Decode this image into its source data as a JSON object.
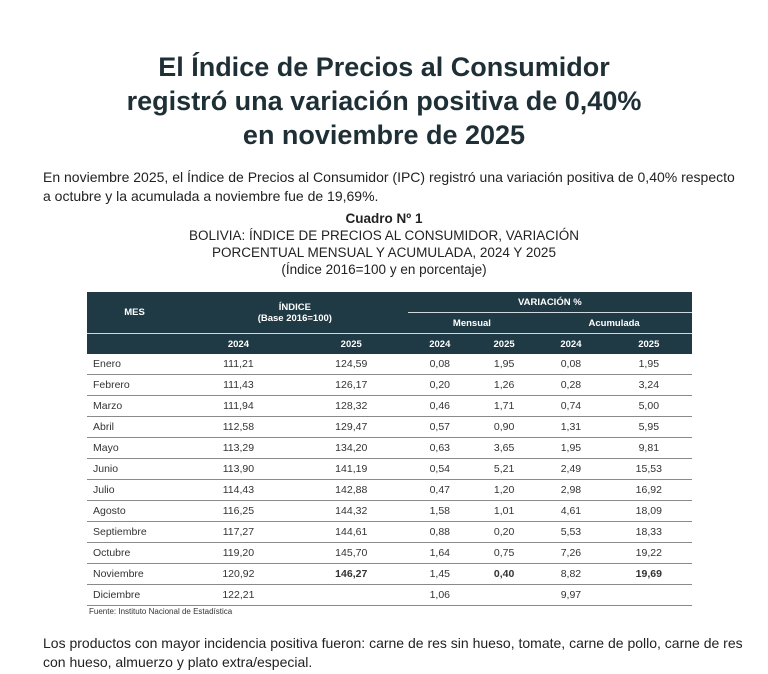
{
  "title": [
    "El Índice de Precios al Consumidor",
    "registró una variación positiva de 0,40%",
    "en noviembre de 2025"
  ],
  "intro": "En noviembre 2025, el Índice de Precios al Consumidor (IPC) registró una variación positiva de 0,40% respecto a octubre y la acumulada a noviembre fue de 19,69%.",
  "caption": {
    "number": "Cuadro Nº 1",
    "line1": "BOLIVIA: ÍNDICE DE PRECIOS AL CONSUMIDOR, VARIACIÓN",
    "line2": "PORCENTUAL MENSUAL Y ACUMULADA, 2024 Y 2025",
    "line3": "(Índice 2016=100 y en porcentaje)"
  },
  "table": {
    "headers": {
      "mes": "MES",
      "indice": "ÍNDICE",
      "base": "(Base 2016=100)",
      "variacion": "VARIACIÓN %",
      "mensual": "Mensual",
      "acumulada": "Acumulada",
      "years": [
        "2024",
        "2025",
        "2024",
        "2025",
        "2024",
        "2025"
      ]
    },
    "rows": [
      [
        "Enero",
        "111,21",
        "124,59",
        "0,08",
        "1,95",
        "0,08",
        "1,95"
      ],
      [
        "Febrero",
        "111,43",
        "126,17",
        "0,20",
        "1,26",
        "0,28",
        "3,24"
      ],
      [
        "Marzo",
        "111,94",
        "128,32",
        "0,46",
        "1,71",
        "0,74",
        "5,00"
      ],
      [
        "Abril",
        "112,58",
        "129,47",
        "0,57",
        "0,90",
        "1,31",
        "5,95"
      ],
      [
        "Mayo",
        "113,29",
        "134,20",
        "0,63",
        "3,65",
        "1,95",
        "9,81"
      ],
      [
        "Junio",
        "113,90",
        "141,19",
        "0,54",
        "5,21",
        "2,49",
        "15,53"
      ],
      [
        "Julio",
        "114,43",
        "142,88",
        "0,47",
        "1,20",
        "2,98",
        "16,92"
      ],
      [
        "Agosto",
        "116,25",
        "144,32",
        "1,58",
        "1,01",
        "4,61",
        "18,09"
      ],
      [
        "Septiembre",
        "117,27",
        "144,61",
        "0,88",
        "0,20",
        "5,53",
        "18,33"
      ],
      [
        "Octubre",
        "119,20",
        "145,70",
        "1,64",
        "0,75",
        "7,26",
        "19,22"
      ],
      [
        "Noviembre",
        "120,92",
        "146,27",
        "1,45",
        "0,40",
        "8,82",
        "19,69"
      ],
      [
        "Diciembre",
        "122,21",
        "",
        "1,06",
        "",
        "9,97",
        ""
      ]
    ]
  },
  "source": "Fuente: Instituto Nacional de Estadística",
  "outro": "Los productos con mayor incidencia positiva fueron: carne de res sin hueso, tomate, carne de pollo, carne de res con hueso, almuerzo y plato extra/especial.",
  "colors": {
    "header_bg": "#1f3a44",
    "title": "#1f2f36"
  }
}
